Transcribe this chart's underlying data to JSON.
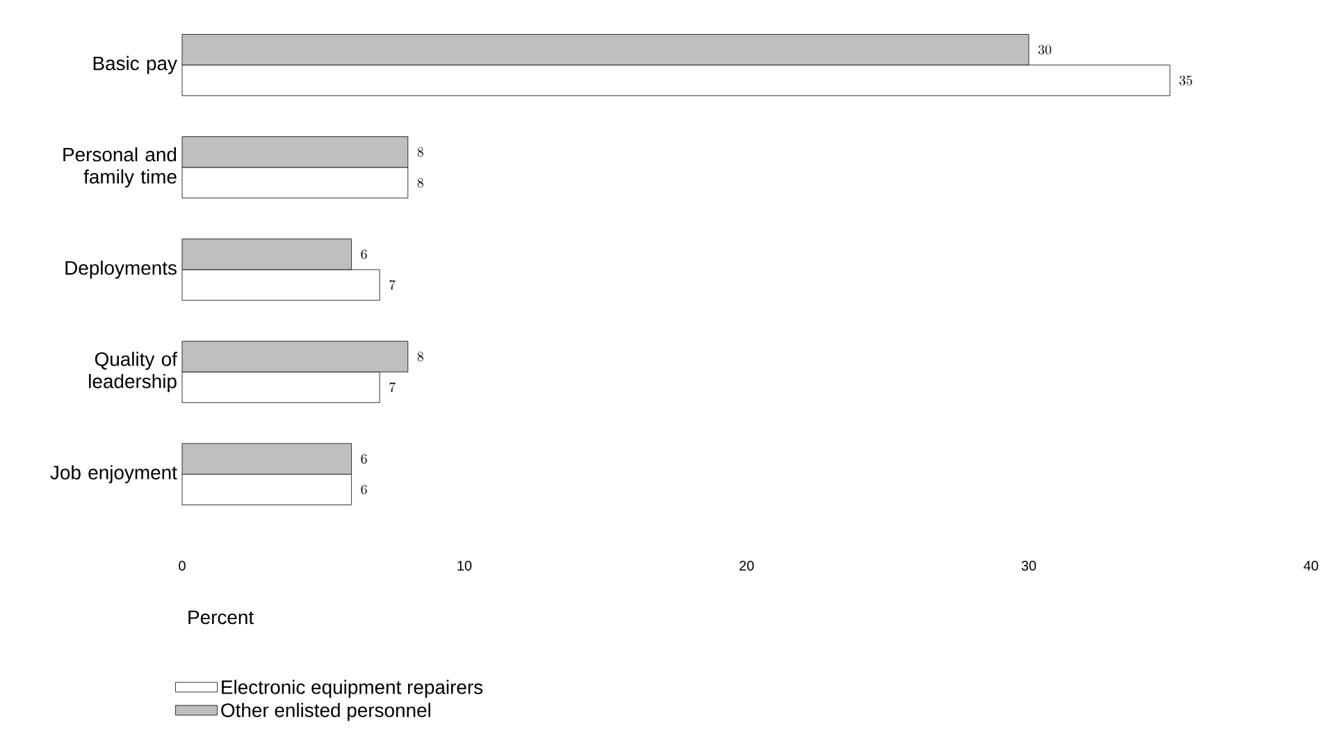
{
  "chart_data": {
    "type": "bar",
    "orientation": "horizontal",
    "categories": [
      "Basic pay",
      "Personal and family time",
      "Deployments",
      "Quality of leadership",
      "Job enjoyment"
    ],
    "series": [
      {
        "name": "Electronic equipment repairers",
        "color": "#ffffff",
        "values": [
          35,
          8,
          7,
          7,
          6
        ]
      },
      {
        "name": "Other enlisted personnel",
        "color": "#bfbfbf",
        "values": [
          30,
          8,
          6,
          8,
          6
        ]
      }
    ],
    "xlabel": "Percent",
    "xlim": [
      0,
      40
    ],
    "xticks": [
      0,
      10,
      20,
      30,
      40
    ],
    "data_labels": true,
    "grid": false,
    "legend": "bottom left"
  }
}
